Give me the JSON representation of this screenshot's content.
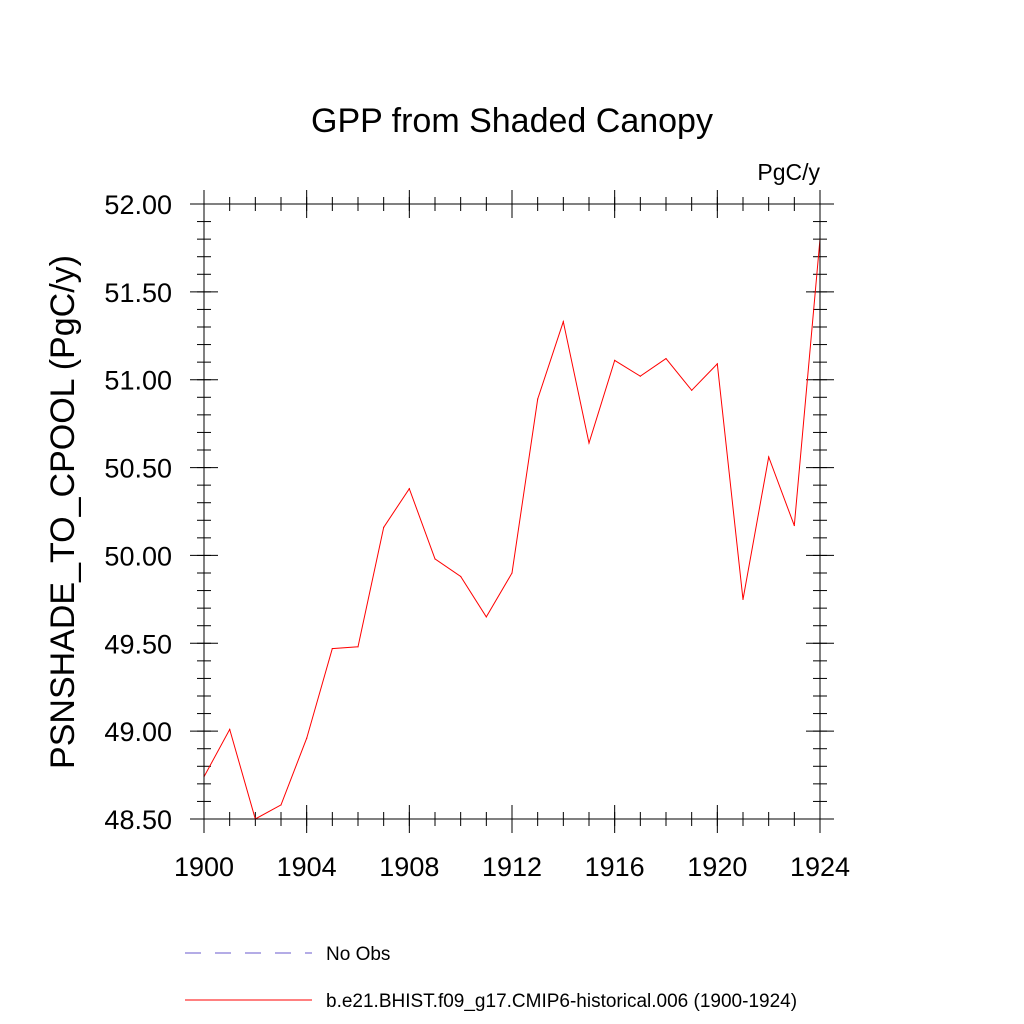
{
  "chart_data": {
    "type": "line",
    "title": "GPP from Shaded Canopy",
    "units_label": "PgC/y",
    "xlabel": "",
    "ylabel": "PSNSHADE_TO_CPOOL  (PgC/y)",
    "xlim": [
      1900,
      1924
    ],
    "ylim": [
      48.5,
      52.0
    ],
    "x_ticks": [
      1900,
      1904,
      1908,
      1912,
      1916,
      1920,
      1924
    ],
    "x_tick_labels": [
      "1900",
      "1904",
      "1908",
      "1912",
      "1916",
      "1920",
      "1924"
    ],
    "y_ticks": [
      48.5,
      49.0,
      49.5,
      50.0,
      50.5,
      51.0,
      51.5,
      52.0
    ],
    "y_tick_labels": [
      "48.50",
      "49.00",
      "49.50",
      "50.00",
      "50.50",
      "51.00",
      "51.50",
      "52.00"
    ],
    "x_minor_step": 1,
    "y_minor_step": 0.1,
    "grid": false,
    "legend_position": "bottom",
    "series": [
      {
        "name": "b.e21.BHIST.f09_g17.CMIP6-historical.006 (1900-1924)",
        "color": "#ff0000",
        "dash": "solid",
        "x": [
          1900,
          1901,
          1902,
          1903,
          1904,
          1905,
          1906,
          1907,
          1908,
          1909,
          1910,
          1911,
          1912,
          1913,
          1914,
          1915,
          1916,
          1917,
          1918,
          1919,
          1920,
          1921,
          1922,
          1923,
          1924
        ],
        "values": [
          48.74,
          49.01,
          48.5,
          48.58,
          48.96,
          49.47,
          49.48,
          50.16,
          50.38,
          49.98,
          49.88,
          49.65,
          49.9,
          50.89,
          51.33,
          50.64,
          51.11,
          51.02,
          51.12,
          50.94,
          51.09,
          49.75,
          50.56,
          50.17,
          51.8
        ]
      }
    ],
    "legend": [
      {
        "label": "No Obs",
        "color": "#6a5acd",
        "dash": "dashed"
      },
      {
        "label": "b.e21.BHIST.f09_g17.CMIP6-historical.006 (1900-1924)",
        "color": "#ff0000",
        "dash": "solid"
      }
    ]
  }
}
